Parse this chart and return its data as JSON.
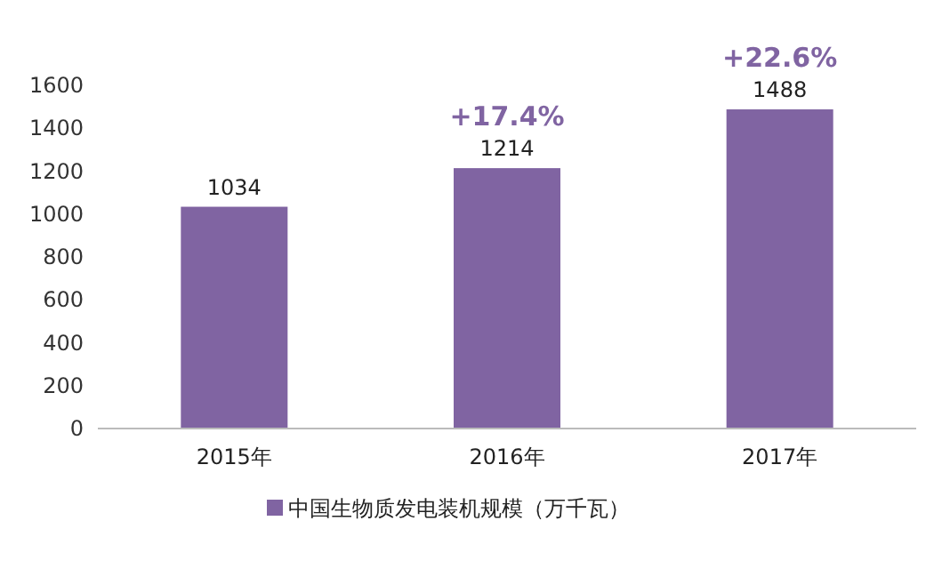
{
  "chart_data": {
    "type": "bar",
    "categories": [
      "2015年",
      "2016年",
      "2017年"
    ],
    "series": [
      {
        "name": "中国生物质发电装机规模（万千瓦）",
        "color": "#8064a2",
        "values": [
          1034,
          1214,
          1488
        ]
      }
    ],
    "ylim": [
      0,
      1600
    ],
    "yticks": [
      0,
      200,
      400,
      600,
      800,
      1000,
      1200,
      1400,
      1600
    ],
    "data_labels": true,
    "legend": "bottom",
    "grid": false,
    "annotations": [
      {
        "text": "+17.4%",
        "x": "2016年",
        "y": 1214
      },
      {
        "text": "+22.6%",
        "x": "2017年",
        "y": 1488
      }
    ]
  }
}
